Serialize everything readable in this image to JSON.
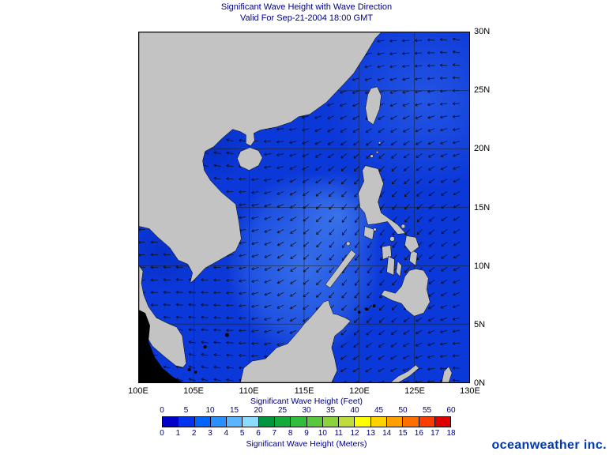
{
  "title": "Significant Wave Height with Wave Direction",
  "subtitle": "Valid For Sep-21-2004 18:00 GMT",
  "map": {
    "lat_labels": [
      "30N",
      "25N",
      "20N",
      "15N",
      "10N",
      "5N",
      "0N"
    ],
    "lon_labels": [
      "100E",
      "105E",
      "110E",
      "115E",
      "120E",
      "125E",
      "130E"
    ],
    "lon_range": [
      100,
      130
    ],
    "lat_range": [
      0,
      30
    ],
    "ocean_color": "#0b38d8",
    "land_color": "#c3c3c3",
    "coast_color": "#000000",
    "nodata_color": "#000000",
    "grid_color": "#1c1c1c",
    "arrow_color": "#0a0a0a"
  },
  "colorbar": {
    "feet_label": "Significant Wave Height (Feet)",
    "meters_label": "Significant Wave Height (Meters)",
    "feet_ticks": [
      "0",
      "5",
      "10",
      "15",
      "20",
      "25",
      "30",
      "35",
      "40",
      "45",
      "50",
      "55",
      "60"
    ],
    "meters_ticks": [
      "0",
      "1",
      "2",
      "3",
      "4",
      "5",
      "6",
      "7",
      "8",
      "9",
      "10",
      "11",
      "12",
      "13",
      "14",
      "15",
      "16",
      "17",
      "18"
    ],
    "colors": [
      "#0000c8",
      "#0032f0",
      "#0064ff",
      "#2890ff",
      "#5ab4ff",
      "#8cdcff",
      "#00963c",
      "#14aa3c",
      "#32be3c",
      "#5ac83c",
      "#8cd23c",
      "#bedc3c",
      "#ffff00",
      "#ffd200",
      "#ffa000",
      "#ff6e00",
      "#ff3c00",
      "#dc0000"
    ]
  },
  "branding": {
    "text": "oceanweather inc.",
    "color": "#0038b0"
  },
  "text": {
    "title_color": "#000080",
    "axis_color": "#000000",
    "tick_color": "#000080"
  }
}
